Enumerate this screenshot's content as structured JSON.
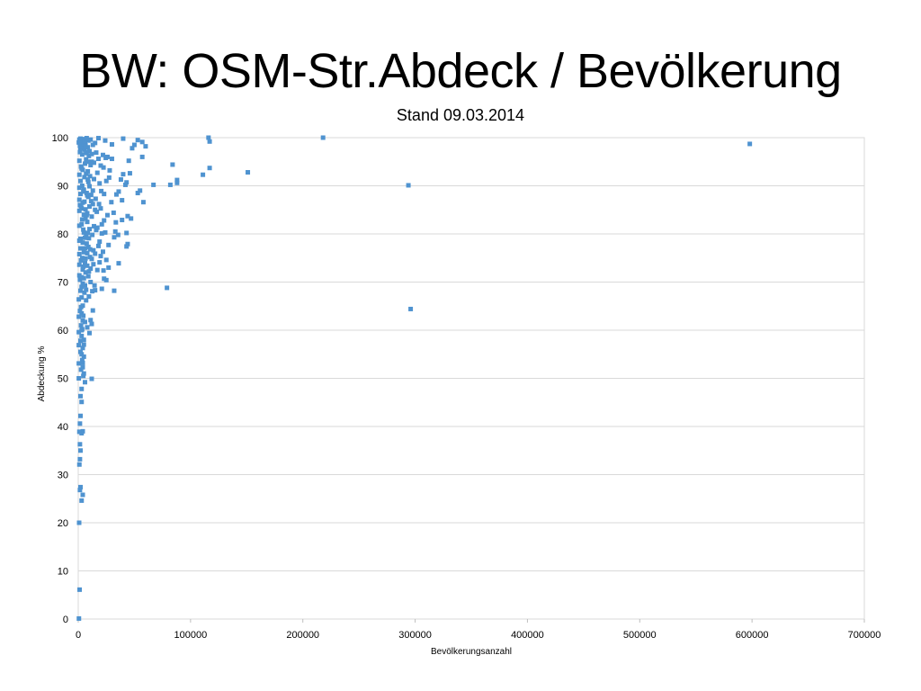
{
  "slide": {
    "title": "BW: OSM-Str.Abdeck / Bevölkerung",
    "subtitle": "Stand 09.03.2014"
  },
  "chart_data": {
    "type": "scatter",
    "xlabel": "Bevölkerungsanzahl",
    "ylabel": "Abdeckung %",
    "xlim": [
      0,
      700000
    ],
    "ylim": [
      0,
      100
    ],
    "xticks": [
      0,
      100000,
      200000,
      300000,
      400000,
      500000,
      600000,
      700000
    ],
    "yticks": [
      0,
      10,
      20,
      30,
      40,
      50,
      60,
      70,
      80,
      90,
      100
    ],
    "grid": "horizontal",
    "legend": "none",
    "marker_color": "#4F93D0",
    "series": [
      {
        "points": [
          [
            598000,
            98.7
          ],
          [
            218000,
            100
          ],
          [
            116000,
            100
          ],
          [
            117000,
            99.2
          ],
          [
            117000,
            93.7
          ],
          [
            151000,
            92.8
          ],
          [
            111000,
            92.3
          ],
          [
            84000,
            94.4
          ],
          [
            88000,
            91.2
          ],
          [
            88000,
            90.6
          ],
          [
            82000,
            90.2
          ],
          [
            67000,
            90.2
          ],
          [
            294000,
            90.1
          ],
          [
            79000,
            68.8
          ],
          [
            296000,
            64.4
          ],
          [
            60000,
            98.2
          ],
          [
            57000,
            99.1
          ],
          [
            53000,
            99.5
          ],
          [
            50000,
            98.5
          ],
          [
            48000,
            97.8
          ],
          [
            57000,
            96.0
          ],
          [
            45000,
            95.2
          ],
          [
            46000,
            92.6
          ],
          [
            55000,
            89.0
          ],
          [
            53000,
            88.5
          ],
          [
            58000,
            86.6
          ],
          [
            43000,
            90.7
          ],
          [
            40000,
            92.4
          ],
          [
            42000,
            90.2
          ],
          [
            38000,
            91.3
          ],
          [
            36000,
            88.8
          ],
          [
            34000,
            88.2
          ],
          [
            39000,
            87.0
          ],
          [
            44000,
            83.7
          ],
          [
            47000,
            83.2
          ],
          [
            39000,
            82.9
          ],
          [
            43000,
            80.2
          ],
          [
            44000,
            77.9
          ],
          [
            43000,
            77.4
          ],
          [
            33000,
            80.5
          ],
          [
            32000,
            79.3
          ],
          [
            36000,
            73.9
          ],
          [
            27000,
            73.0
          ],
          [
            32000,
            68.2
          ],
          [
            21000,
            68.6
          ],
          [
            30000,
            95.6
          ],
          [
            28000,
            93.2
          ],
          [
            26000,
            96.0
          ],
          [
            30000,
            98.6
          ],
          [
            40000,
            99.8
          ],
          [
            24000,
            99.4
          ],
          [
            18000,
            99.9
          ],
          [
            15000,
            98.9
          ],
          [
            25000,
            91.0
          ],
          [
            23000,
            88.3
          ],
          [
            20000,
            85.3
          ],
          [
            26000,
            83.9
          ],
          [
            21000,
            82.0
          ],
          [
            24000,
            80.3
          ],
          [
            27000,
            77.7
          ],
          [
            22000,
            76.3
          ],
          [
            19000,
            74.1
          ],
          [
            25000,
            74.6
          ],
          [
            17000,
            72.5
          ],
          [
            23000,
            70.7
          ],
          [
            15000,
            68.3
          ],
          [
            13000,
            64.1
          ],
          [
            11000,
            62.1
          ],
          [
            12000,
            61.3
          ],
          [
            10000,
            59.4
          ],
          [
            12000,
            49.9
          ],
          [
            6000,
            49.2
          ],
          [
            5000,
            51.0
          ],
          [
            4000,
            52.3
          ],
          [
            5000,
            54.5
          ],
          [
            4000,
            56.3
          ],
          [
            5000,
            58.0
          ],
          [
            3000,
            60.0
          ],
          [
            4000,
            62.0
          ],
          [
            3000,
            63.5
          ],
          [
            4000,
            65.1
          ],
          [
            3000,
            66.8
          ],
          [
            2000,
            68.2
          ],
          [
            4000,
            69.7
          ],
          [
            3000,
            47.8
          ],
          [
            2000,
            46.3
          ],
          [
            3000,
            45.1
          ],
          [
            2000,
            42.2
          ],
          [
            1500,
            40.6
          ],
          [
            4000,
            39.0
          ],
          [
            3000,
            38.6
          ],
          [
            1000,
            38.9
          ],
          [
            1500,
            36.3
          ],
          [
            2000,
            35.0
          ],
          [
            1500,
            33.2
          ],
          [
            1000,
            32.1
          ],
          [
            2000,
            27.4
          ],
          [
            1500,
            26.8
          ],
          [
            4000,
            25.8
          ],
          [
            3000,
            24.6
          ],
          [
            800,
            20.0
          ],
          [
            1200,
            6.1
          ],
          [
            600,
            0.1
          ],
          [
            1000,
            99.6
          ],
          [
            2000,
            99.8
          ],
          [
            3000,
            99.5
          ],
          [
            4500,
            99.7
          ],
          [
            6000,
            99.2
          ],
          [
            7500,
            99.9
          ],
          [
            9000,
            99.4
          ],
          [
            11000,
            99.6
          ],
          [
            13000,
            98.5
          ],
          [
            1500,
            97.0
          ],
          [
            3500,
            96.5
          ],
          [
            5500,
            97.5
          ],
          [
            7000,
            95.5
          ],
          [
            9500,
            96.2
          ],
          [
            12000,
            95.0
          ],
          [
            2500,
            94.0
          ],
          [
            4000,
            93.3
          ],
          [
            6000,
            94.6
          ],
          [
            8500,
            93.0
          ],
          [
            10500,
            92.0
          ],
          [
            14000,
            91.4
          ],
          [
            17000,
            92.7
          ],
          [
            19000,
            90.5
          ],
          [
            2000,
            91.0
          ],
          [
            3500,
            90.0
          ],
          [
            5000,
            89.2
          ],
          [
            7500,
            88.5
          ],
          [
            9000,
            87.7
          ],
          [
            11500,
            86.8
          ],
          [
            15500,
            87.3
          ],
          [
            1500,
            86.0
          ],
          [
            3000,
            85.3
          ],
          [
            5000,
            84.0
          ],
          [
            6500,
            83.2
          ],
          [
            8000,
            82.5
          ],
          [
            10000,
            81.0
          ],
          [
            12500,
            79.8
          ],
          [
            16000,
            80.8
          ],
          [
            2000,
            79.0
          ],
          [
            4000,
            78.2
          ],
          [
            6000,
            77.0
          ],
          [
            8000,
            76.0
          ],
          [
            10500,
            75.2
          ],
          [
            13500,
            76.6
          ],
          [
            2500,
            74.5
          ],
          [
            4500,
            73.2
          ],
          [
            6500,
            72.0
          ],
          [
            9000,
            71.2
          ],
          [
            11000,
            72.8
          ],
          [
            1500,
            70.5
          ],
          [
            3000,
            69.0
          ],
          [
            5500,
            67.8
          ],
          [
            7000,
            66.2
          ],
          [
            2500,
            64.8
          ],
          [
            4500,
            63.0
          ],
          [
            6000,
            61.7
          ],
          [
            8000,
            60.6
          ],
          [
            3000,
            58.8
          ],
          [
            5000,
            57.0
          ],
          [
            2000,
            55.5
          ],
          [
            3500,
            53.8
          ],
          [
            2500,
            51.8
          ],
          [
            4500,
            50.5
          ],
          [
            8000,
            88.0
          ],
          [
            10000,
            85.7
          ],
          [
            12000,
            83.6
          ],
          [
            14000,
            81.6
          ],
          [
            16500,
            84.6
          ],
          [
            18500,
            86.2
          ],
          [
            20500,
            88.9
          ],
          [
            22500,
            93.8
          ],
          [
            24500,
            95.8
          ],
          [
            27500,
            91.7
          ],
          [
            29500,
            86.6
          ],
          [
            31500,
            84.4
          ],
          [
            33500,
            82.4
          ],
          [
            35500,
            79.8
          ],
          [
            18000,
            77.5
          ],
          [
            20000,
            75.4
          ],
          [
            22500,
            72.4
          ],
          [
            25000,
            70.4
          ],
          [
            14500,
            69.3
          ],
          [
            12500,
            68.1
          ],
          [
            9500,
            67.0
          ],
          [
            1000,
            95.2
          ],
          [
            1000,
            92.3
          ],
          [
            1000,
            89.6
          ],
          [
            1000,
            87.1
          ],
          [
            1000,
            84.8
          ],
          [
            1000,
            81.7
          ],
          [
            1000,
            78.6
          ],
          [
            1000,
            75.8
          ],
          [
            1000,
            73.6
          ],
          [
            1000,
            71.4
          ],
          [
            500,
            66.4
          ],
          [
            500,
            62.8
          ],
          [
            500,
            59.6
          ],
          [
            500,
            56.9
          ],
          [
            500,
            53.1
          ],
          [
            500,
            50.0
          ],
          [
            2000,
            97.8
          ],
          [
            3000,
            93.6
          ],
          [
            4000,
            86.5
          ],
          [
            5000,
            80.3
          ],
          [
            6000,
            74.0
          ],
          [
            7000,
            79.6
          ],
          [
            8000,
            84.3
          ],
          [
            9000,
            90.8
          ],
          [
            11000,
            94.3
          ],
          [
            13000,
            89.0
          ],
          [
            15000,
            85.0
          ],
          [
            17000,
            81.3
          ],
          [
            19000,
            78.4
          ],
          [
            21000,
            80.1
          ],
          [
            23000,
            82.8
          ],
          [
            7000,
            97.0
          ],
          [
            8500,
            98.0
          ],
          [
            10000,
            97.2
          ],
          [
            12000,
            96.6
          ],
          [
            14000,
            94.8
          ],
          [
            16000,
            96.9
          ],
          [
            18000,
            95.6
          ],
          [
            20000,
            94.2
          ],
          [
            22000,
            96.4
          ],
          [
            5500,
            91.8
          ],
          [
            7000,
            92.5
          ],
          [
            8500,
            91.3
          ],
          [
            10000,
            89.9
          ],
          [
            11500,
            88.1
          ],
          [
            13000,
            86.2
          ],
          [
            3000,
            82.0
          ],
          [
            4500,
            80.9
          ],
          [
            6000,
            79.2
          ],
          [
            7500,
            78.0
          ],
          [
            9000,
            77.3
          ],
          [
            10500,
            76.8
          ],
          [
            12000,
            74.8
          ],
          [
            13500,
            73.7
          ],
          [
            15000,
            75.9
          ],
          [
            2000,
            77.0
          ],
          [
            3500,
            75.0
          ],
          [
            5000,
            76.2
          ],
          [
            6500,
            74.9
          ],
          [
            8000,
            73.4
          ],
          [
            9500,
            72.2
          ],
          [
            11000,
            70.0
          ],
          [
            500,
            99.0
          ],
          [
            1500,
            98.3
          ],
          [
            2500,
            98.8
          ],
          [
            3500,
            98.1
          ],
          [
            4500,
            98.6
          ],
          [
            5500,
            99.0
          ],
          [
            6500,
            98.4
          ],
          [
            7500,
            96.8
          ],
          [
            8500,
            95.0
          ],
          [
            2000,
            88.3
          ],
          [
            2500,
            85.8
          ],
          [
            3500,
            83.0
          ],
          [
            4500,
            88.8
          ],
          [
            5500,
            86.7
          ],
          [
            6500,
            85.1
          ],
          [
            7500,
            83.9
          ],
          [
            8500,
            80.2
          ],
          [
            9500,
            79.1
          ],
          [
            3000,
            71.0
          ],
          [
            4000,
            72.6
          ],
          [
            5000,
            70.8
          ],
          [
            6000,
            69.3
          ],
          [
            7000,
            68.4
          ],
          [
            1500,
            64.0
          ],
          [
            2500,
            61.0
          ],
          [
            3500,
            60.2
          ],
          [
            2000,
            57.8
          ],
          [
            3000,
            55.0
          ],
          [
            4000,
            53.2
          ]
        ]
      }
    ]
  }
}
